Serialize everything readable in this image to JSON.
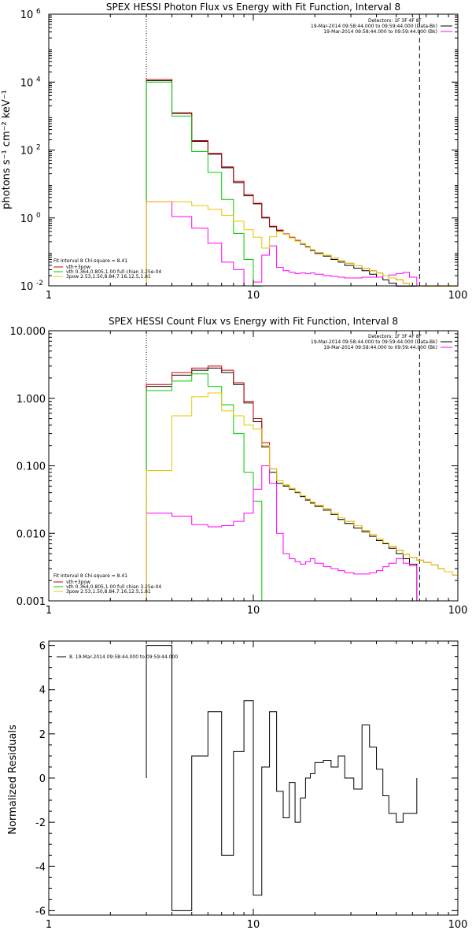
{
  "chart_data": [
    {
      "type": "line",
      "title": "SPEX HESSI Photon Flux vs Energy with Fit Function, Interval 8",
      "xlabel": "",
      "ylabel": "photons s⁻¹ cm⁻² keV⁻¹",
      "xscale": "log",
      "yscale": "log",
      "xlim": [
        1,
        100
      ],
      "ylim": [
        0.01,
        1000000
      ],
      "x_tick_labels": [
        {
          "value": 1,
          "label": "1"
        },
        {
          "value": 10,
          "label": "10"
        },
        {
          "value": 100,
          "label": "100"
        }
      ],
      "y_tick_labels": [
        {
          "value": 0.01,
          "base": "10",
          "exp": "-2"
        },
        {
          "value": 1,
          "base": "10",
          "exp": "0"
        },
        {
          "value": 100,
          "base": "10",
          "exp": "2"
        },
        {
          "value": 10000,
          "base": "10",
          "exp": "4"
        },
        {
          "value": 1000000,
          "base": "10",
          "exp": "6"
        }
      ],
      "dotted_line_x": 3,
      "dashed_line_x": 65,
      "bin_edges": [
        3,
        4,
        5,
        6,
        7,
        8,
        9,
        10,
        11,
        12,
        13,
        14,
        15,
        16,
        17,
        18,
        19,
        20,
        22,
        24,
        26,
        28,
        31,
        34,
        37,
        40,
        43,
        46,
        50,
        54,
        58,
        63,
        68,
        74,
        80,
        86,
        94,
        100
      ],
      "series": [
        {
          "color": "#000000",
          "values": [
            11000,
            1200,
            180,
            75,
            30,
            11,
            4.5,
            2.6,
            1.0,
            0.55,
            0.42,
            0.33,
            0.26,
            0.21,
            0.17,
            0.14,
            0.11,
            0.09,
            0.075,
            0.06,
            0.05,
            0.04,
            0.033,
            0.028,
            0.022,
            0.018,
            0.015,
            0.012,
            0.009,
            0.007,
            0.005
          ]
        },
        {
          "color": "#cc0000",
          "values": [
            12000,
            1250,
            190,
            80,
            32,
            12,
            4.9,
            2.7,
            1.05,
            0.57,
            0.44,
            0.34,
            0.27,
            0.22,
            0.175,
            0.145,
            0.115,
            0.095,
            0.08,
            0.066,
            0.055,
            0.046,
            0.039,
            0.033,
            0.028,
            0.024,
            0.02,
            0.017,
            0.015,
            0.012,
            0.01,
            0.009,
            0.008,
            0.007,
            0.006,
            0.005,
            0.004
          ]
        },
        {
          "color": "#00cc00",
          "values": [
            10000,
            1000,
            90,
            22,
            3.5,
            0.35,
            0.06,
            0.008
          ]
        },
        {
          "color": "#ff00ff",
          "values": [
            3,
            1.1,
            0.5,
            0.18,
            0.05,
            0.03,
            0.01,
            0.013,
            0.08,
            0.15,
            0.035,
            0.028,
            0.025,
            0.023,
            0.024,
            0.023,
            0.024,
            0.022,
            0.02,
            0.019,
            0.018,
            0.017,
            0.017,
            0.018,
            0.018,
            0.018,
            0.02,
            0.021,
            0.023,
            0.025,
            0.018
          ]
        },
        {
          "color": "#e6c800",
          "values": [
            3,
            3,
            2.3,
            1.8,
            1.2,
            0.8,
            0.45,
            0.27,
            0.13,
            0.28,
            0.4,
            0.33,
            0.26,
            0.21,
            0.175,
            0.145,
            0.115,
            0.095,
            0.08,
            0.066,
            0.055,
            0.046,
            0.039,
            0.033,
            0.028,
            0.024,
            0.02,
            0.017,
            0.015,
            0.012,
            0.01,
            0.009,
            0.008,
            0.007,
            0.006,
            0.005,
            0.004
          ]
        }
      ],
      "legend_top": {
        "header": "Detectors: 1F 3F 4F 8F",
        "entries": [
          {
            "text": "19-Mar-2014 09:58:44.000 to 09:59:44.000 (Data-Bk)",
            "color": "#000000"
          },
          {
            "text": "19-Mar-2014 09:58:44.000 to 09:59:44.000 (Bk)",
            "color": "#ff00ff"
          }
        ]
      },
      "legend_bottom": {
        "header": "Fit Interval 8   Chi-square = 8.41",
        "entries": [
          {
            "text": "vth+3pow",
            "color": "#cc0000"
          },
          {
            "text": "vth 0.364,0.805,1.00  full chian 3.25e-04",
            "color": "#00cc00"
          },
          {
            "text": "3pow 2.53,1.50,8.84,7.16,12.5,1.81",
            "color": "#e6c800"
          }
        ]
      }
    },
    {
      "type": "line",
      "title": "SPEX HESSI Count Flux vs Energy with Fit Function, Interval 8",
      "xlabel": "",
      "ylabel": "",
      "xscale": "log",
      "yscale": "log",
      "xlim": [
        1,
        100
      ],
      "ylim": [
        0.001,
        10
      ],
      "x_tick_labels": [
        {
          "value": 1,
          "label": "1"
        },
        {
          "value": 10,
          "label": "10"
        },
        {
          "value": 100,
          "label": "100"
        }
      ],
      "y_tick_labels": [
        {
          "value": 0.001,
          "label": "0.001"
        },
        {
          "value": 0.01,
          "label": "0.010"
        },
        {
          "value": 0.1,
          "label": "0.100"
        },
        {
          "value": 1,
          "label": "1.000"
        },
        {
          "value": 10,
          "label": "10.000"
        }
      ],
      "dotted_line_x": 3,
      "dashed_line_x": 65,
      "bin_edges": [
        3,
        4,
        5,
        6,
        7,
        8,
        9,
        10,
        11,
        12,
        13,
        14,
        15,
        16,
        17,
        18,
        19,
        20,
        22,
        24,
        26,
        28,
        31,
        34,
        37,
        40,
        43,
        46,
        50,
        54,
        58,
        63,
        68,
        74,
        80,
        86,
        94,
        100
      ],
      "series": [
        {
          "color": "#000000",
          "values": [
            1.5,
            2.2,
            2.6,
            2.8,
            2.4,
            1.6,
            0.85,
            0.45,
            0.19,
            0.08,
            0.055,
            0.05,
            0.045,
            0.04,
            0.035,
            0.031,
            0.028,
            0.025,
            0.022,
            0.019,
            0.016,
            0.014,
            0.012,
            0.0105,
            0.009,
            0.0078,
            0.007,
            0.006,
            0.005,
            0.0042,
            0.0035
          ]
        },
        {
          "color": "#cc0000",
          "values": [
            1.6,
            2.4,
            2.8,
            3.0,
            2.6,
            1.7,
            0.9,
            0.5,
            0.22,
            0.09,
            0.06,
            0.052,
            0.046,
            0.041,
            0.036,
            0.032,
            0.029,
            0.026,
            0.023,
            0.02,
            0.017,
            0.015,
            0.013,
            0.011,
            0.0095,
            0.0082,
            0.0072,
            0.0064,
            0.0056,
            0.0049,
            0.0044,
            0.004,
            0.0037,
            0.0034,
            0.003,
            0.0027,
            0.0024
          ]
        },
        {
          "color": "#00cc00",
          "values": [
            1.3,
            1.8,
            2.3,
            1.5,
            0.8,
            0.3,
            0.08,
            0.03,
            0.001
          ]
        },
        {
          "color": "#ff00ff",
          "values": [
            0.02,
            0.018,
            0.0135,
            0.0125,
            0.013,
            0.015,
            0.02,
            0.045,
            0.1,
            0.055,
            0.01,
            0.005,
            0.0042,
            0.0038,
            0.0035,
            0.0038,
            0.0042,
            0.0036,
            0.0032,
            0.003,
            0.0028,
            0.0026,
            0.0025,
            0.0025,
            0.0026,
            0.0028,
            0.0032,
            0.0036,
            0.0042,
            0.0036,
            0.0033
          ]
        },
        {
          "color": "#e6c800",
          "values": [
            0.085,
            0.55,
            1.05,
            1.2,
            0.65,
            0.55,
            0.4,
            0.35,
            0.2,
            0.09,
            0.06,
            0.052,
            0.046,
            0.041,
            0.036,
            0.032,
            0.029,
            0.026,
            0.023,
            0.02,
            0.017,
            0.015,
            0.013,
            0.011,
            0.0095,
            0.0082,
            0.0072,
            0.0064,
            0.0056,
            0.0049,
            0.0044,
            0.004,
            0.0037,
            0.0034,
            0.003,
            0.0027,
            0.0024
          ]
        }
      ],
      "legend_top": {
        "header": "Detectors: 1F 3F 4F 8F",
        "entries": [
          {
            "text": "19-Mar-2014 09:58:44.000 to 09:59:44.000 (Data-Bk)",
            "color": "#000000"
          },
          {
            "text": "19-Mar-2014 09:58:44.000 to 09:59:44.000 (Bk)",
            "color": "#ff00ff"
          }
        ]
      },
      "legend_bottom": {
        "header": "Fit Interval 8   Chi-square = 8.41",
        "entries": [
          {
            "text": "vth+3pow",
            "color": "#cc0000"
          },
          {
            "text": "vth 0.364,0.805,1.00  full chian 3.25e-04",
            "color": "#00cc00"
          },
          {
            "text": "3pow 2.53,1.50,8.84,7.16,12.5,1.81",
            "color": "#e6c800"
          }
        ]
      }
    },
    {
      "type": "line",
      "title": "",
      "xlabel": "",
      "ylabel": "Normalized Residuals",
      "xscale": "log",
      "yscale": "linear",
      "xlim": [
        1,
        100
      ],
      "ylim": [
        -6.2,
        6.2
      ],
      "x_tick_labels": [
        {
          "value": 1,
          "label": "1"
        },
        {
          "value": 10,
          "label": "10"
        },
        {
          "value": 100,
          "label": "100"
        }
      ],
      "y_tick_labels": [
        {
          "value": -6,
          "label": "-6"
        },
        {
          "value": -4,
          "label": "-4"
        },
        {
          "value": -2,
          "label": "-2"
        },
        {
          "value": 0,
          "label": "0"
        },
        {
          "value": 2,
          "label": "2"
        },
        {
          "value": 4,
          "label": "4"
        },
        {
          "value": 6,
          "label": "6"
        }
      ],
      "bin_edges": [
        3,
        4,
        5,
        6,
        7,
        8,
        9,
        10,
        11,
        12,
        13,
        14,
        15,
        16,
        17,
        18,
        19,
        20,
        22,
        24,
        26,
        28,
        31,
        34,
        37,
        40,
        43,
        46,
        50,
        54,
        58,
        63,
        68
      ],
      "series": [
        {
          "color": "#000000",
          "values": [
            6.0,
            -6.0,
            1.0,
            3.0,
            -3.5,
            1.2,
            3.5,
            -5.3,
            0.5,
            3.0,
            -0.6,
            -1.8,
            -0.2,
            -2.0,
            -0.9,
            0.0,
            0.2,
            0.7,
            0.8,
            0.5,
            1.0,
            0.0,
            -0.5,
            2.4,
            1.4,
            0.4,
            -0.8,
            -1.6,
            -2.0,
            -1.6,
            -1.6
          ]
        }
      ],
      "legend_top": {
        "header": "",
        "entries": [
          {
            "text": "8. 19-Mar-2014 09:58:44.000 to 09:59:44.000",
            "color": "#000000"
          }
        ]
      }
    }
  ]
}
